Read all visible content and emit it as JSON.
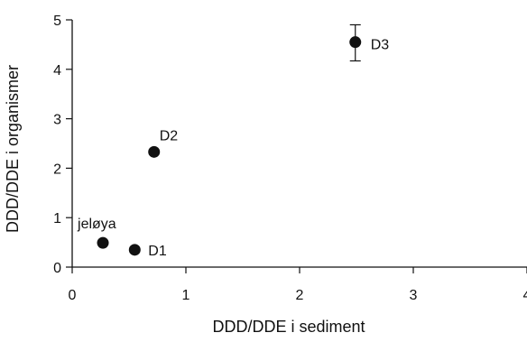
{
  "chart_data": {
    "type": "scatter",
    "title": "",
    "xlabel": "DDD/DDE i sediment",
    "ylabel": "DDD/DDE i organismer",
    "xlim": [
      0,
      4
    ],
    "ylim": [
      0,
      5
    ],
    "xticks": [
      0,
      1,
      2,
      3,
      4
    ],
    "yticks": [
      0,
      1,
      2,
      3,
      4,
      5
    ],
    "grid": false,
    "points": [
      {
        "label": "jeløya",
        "x": 0.27,
        "y": 0.49
      },
      {
        "label": "D1",
        "x": 0.55,
        "y": 0.35
      },
      {
        "label": "D2",
        "x": 0.72,
        "y": 2.33
      },
      {
        "label": "D3",
        "x": 2.49,
        "y": 4.55,
        "y_err": [
          4.17,
          4.9
        ]
      }
    ]
  }
}
